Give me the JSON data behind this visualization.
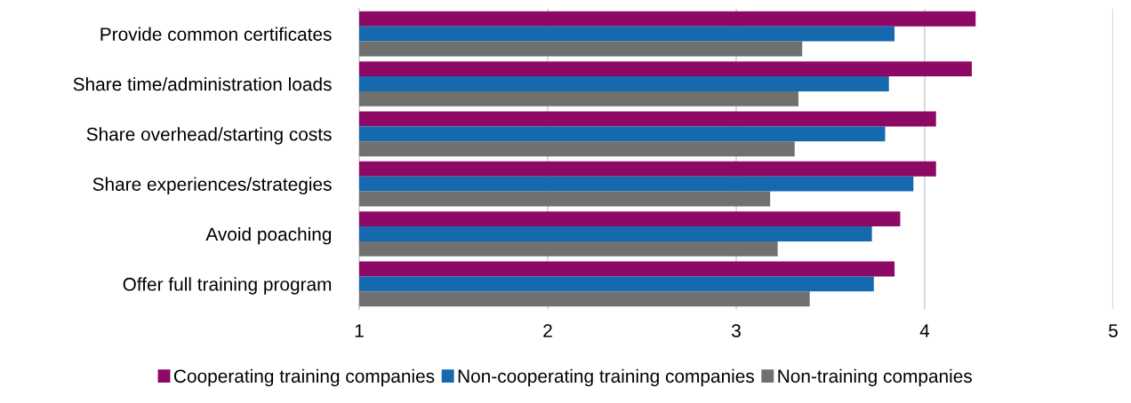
{
  "chart_data": {
    "type": "bar",
    "orientation": "horizontal",
    "categories": [
      "Provide common certificates",
      "Share time/administration loads",
      "Share overhead/starting costs",
      "Share experiences/strategies",
      "Avoid poaching",
      "Offer full training program"
    ],
    "series": [
      {
        "name": "Cooperating training companies",
        "color": "#8e0866",
        "values": [
          4.27,
          4.25,
          4.06,
          4.06,
          3.87,
          3.84
        ]
      },
      {
        "name": "Non-cooperating training companies",
        "color": "#1569ae",
        "values": [
          3.84,
          3.81,
          3.79,
          3.94,
          3.72,
          3.73
        ]
      },
      {
        "name": "Non-training companies",
        "color": "#707070",
        "values": [
          3.35,
          3.33,
          3.31,
          3.18,
          3.22,
          3.39
        ]
      }
    ],
    "xlim": [
      1,
      5
    ],
    "xticks": [
      1,
      2,
      3,
      4,
      5
    ],
    "grid": "x",
    "legend": "bottom"
  }
}
